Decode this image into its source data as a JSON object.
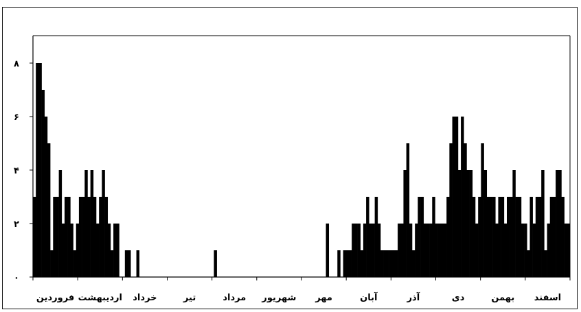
{
  "chart_data": {
    "type": "bar",
    "title": "",
    "xlabel": "",
    "ylabel": "",
    "ylim": [
      0,
      9
    ],
    "yticks": [
      {
        "value": 0,
        "label": "۰"
      },
      {
        "value": 2,
        "label": "۲"
      },
      {
        "value": 4,
        "label": "۴"
      },
      {
        "value": 6,
        "label": "۶"
      },
      {
        "value": 8,
        "label": "۸"
      }
    ],
    "months": [
      "فروردین",
      "اردیبهشت",
      "خرداد",
      "تیر",
      "مرداد",
      "شهریور",
      "مهر",
      "آبان",
      "آذر",
      "دی",
      "بهمن",
      "اسفند"
    ],
    "bar_color": "#000000",
    "values": [
      3,
      8,
      8,
      7,
      6,
      5,
      1,
      3,
      3,
      4,
      2,
      3,
      3,
      2,
      1,
      2,
      3,
      3,
      4,
      3,
      4,
      3,
      2,
      3,
      4,
      3,
      2,
      1,
      2,
      2,
      0,
      0,
      1,
      1,
      0,
      0,
      1,
      0,
      0,
      0,
      0,
      0,
      0,
      0,
      0,
      0,
      0,
      0,
      0,
      0,
      0,
      0,
      0,
      0,
      0,
      0,
      0,
      0,
      0,
      0,
      0,
      0,
      0,
      1,
      0,
      0,
      0,
      0,
      0,
      0,
      0,
      0,
      0,
      0,
      0,
      0,
      0,
      0,
      0,
      0,
      0,
      0,
      0,
      0,
      0,
      0,
      0,
      0,
      0,
      0,
      0,
      0,
      0,
      0,
      0,
      0,
      0,
      0,
      0,
      0,
      0,
      0,
      2,
      0,
      0,
      0,
      1,
      0,
      1,
      1,
      1,
      2,
      2,
      2,
      1,
      2,
      3,
      2,
      2,
      3,
      2,
      1,
      1,
      1,
      1,
      1,
      1,
      2,
      2,
      4,
      5,
      2,
      1,
      2,
      3,
      3,
      2,
      2,
      2,
      3,
      2,
      2,
      2,
      2,
      3,
      5,
      6,
      6,
      4,
      6,
      5,
      4,
      4,
      3,
      2,
      3,
      5,
      4,
      3,
      3,
      3,
      2,
      3,
      3,
      2,
      3,
      3,
      4,
      3,
      3,
      2,
      2,
      1,
      3,
      2,
      3,
      3,
      4,
      1,
      2,
      3,
      3,
      4,
      4,
      3,
      2,
      2
    ]
  }
}
